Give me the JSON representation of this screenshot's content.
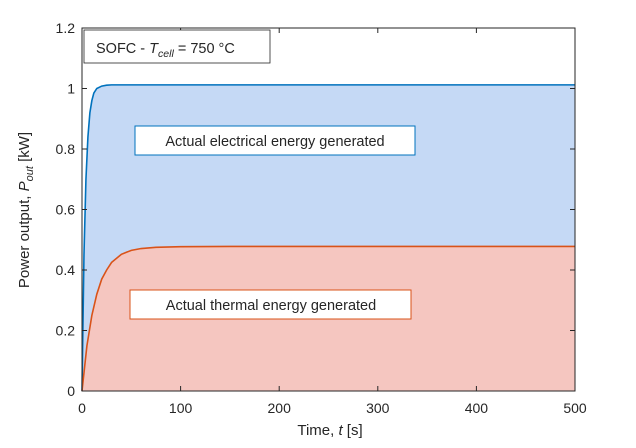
{
  "chart_data": {
    "type": "area",
    "title": "",
    "annotation": {
      "text": "SOFC - ",
      "var_main": "T",
      "var_sub": "cell",
      "suffix": " = 750 °C"
    },
    "xlabel": {
      "text": "Time, ",
      "var": "t",
      "suffix": " [s]"
    },
    "ylabel": {
      "text": "Power output, ",
      "var_main": "P",
      "var_sub": "out",
      "suffix": " [kW]"
    },
    "xlim": [
      0,
      500
    ],
    "ylim": [
      0,
      1.2
    ],
    "x_ticks": [
      0,
      100,
      200,
      300,
      400,
      500
    ],
    "y_ticks": [
      0,
      0.2,
      0.4,
      0.6,
      0.8,
      1,
      1.2
    ],
    "x_tick_labels": [
      "0",
      "100",
      "200",
      "300",
      "400",
      "500"
    ],
    "y_tick_labels": [
      "0",
      "0.2",
      "0.4",
      "0.6",
      "0.8",
      "1",
      "1.2"
    ],
    "grid": false,
    "series": [
      {
        "label_text": "Actual electrical energy generated",
        "line_color": "#0072BD",
        "fill_color": "#C5D9F5",
        "steady_value": 1.012,
        "x": [
          0,
          2,
          4,
          6,
          8,
          10,
          12,
          15,
          20,
          25,
          30,
          40,
          50,
          75,
          100,
          150,
          200,
          300,
          400,
          500
        ],
        "values": [
          0,
          0.45,
          0.7,
          0.84,
          0.92,
          0.96,
          0.985,
          1.0,
          1.008,
          1.011,
          1.012,
          1.012,
          1.012,
          1.012,
          1.012,
          1.012,
          1.012,
          1.012,
          1.012,
          1.012
        ]
      },
      {
        "label_text": "Actual thermal energy generated",
        "line_color": "#D95319",
        "fill_color": "#F5C6C0",
        "steady_value": 0.478,
        "x": [
          0,
          5,
          10,
          15,
          20,
          25,
          30,
          40,
          50,
          60,
          75,
          100,
          150,
          200,
          300,
          400,
          500
        ],
        "values": [
          0,
          0.15,
          0.25,
          0.32,
          0.37,
          0.4,
          0.425,
          0.452,
          0.465,
          0.471,
          0.475,
          0.477,
          0.478,
          0.478,
          0.478,
          0.478,
          0.478
        ]
      }
    ],
    "frame_color": "#262626"
  }
}
